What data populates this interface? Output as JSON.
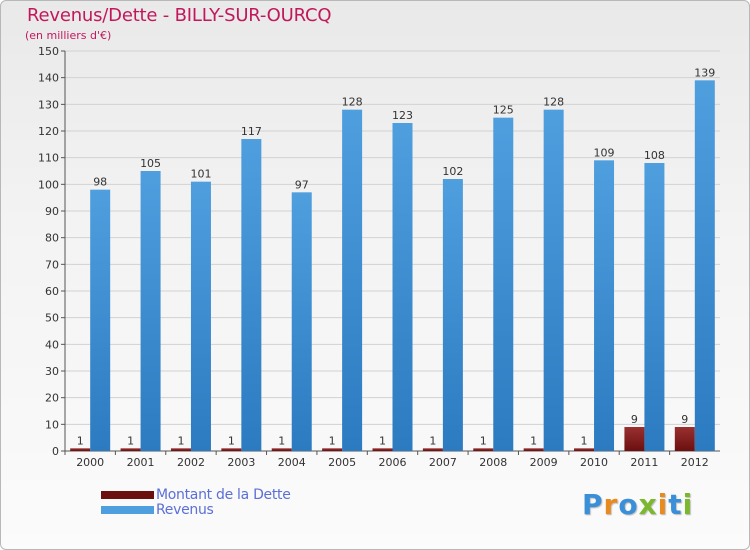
{
  "colors": {
    "revenus": "#4f9fdf",
    "revenus_dark": "#2c7ac0",
    "dette": "#6b0f0f",
    "dette_light": "#9a3030",
    "title": "#c2185b",
    "legend_text": "#5b6fd6"
  },
  "chart_data": {
    "type": "bar",
    "title": "Revenus/Dette - BILLY-SUR-OURCQ",
    "subtitle": "(en milliers d'€)",
    "categories": [
      "2000",
      "2001",
      "2002",
      "2003",
      "2004",
      "2005",
      "2006",
      "2007",
      "2008",
      "2009",
      "2010",
      "2011",
      "2012"
    ],
    "series": [
      {
        "name": "Montant de la Dette",
        "key": "dette",
        "values": [
          1,
          1,
          1,
          1,
          1,
          1,
          1,
          1,
          1,
          1,
          1,
          9,
          9
        ]
      },
      {
        "name": "Revenus",
        "key": "revenus",
        "values": [
          98,
          105,
          101,
          117,
          97,
          128,
          123,
          102,
          125,
          128,
          109,
          108,
          139
        ]
      }
    ],
    "ylim": [
      0,
      150
    ],
    "yticks": [
      0,
      10,
      20,
      30,
      40,
      50,
      60,
      70,
      80,
      90,
      100,
      110,
      120,
      130,
      140,
      150
    ],
    "legend": {
      "position": "bottom-left"
    },
    "xlabel": "",
    "ylabel": ""
  },
  "logo": {
    "letters": [
      "P",
      "r",
      "o",
      "x",
      "i",
      "t",
      "i"
    ],
    "colors": [
      "#3a8fd8",
      "#e98a1e",
      "#3a8fd8",
      "#7cb82f",
      "#e98a1e",
      "#3a8fd8",
      "#7cb82f"
    ]
  }
}
